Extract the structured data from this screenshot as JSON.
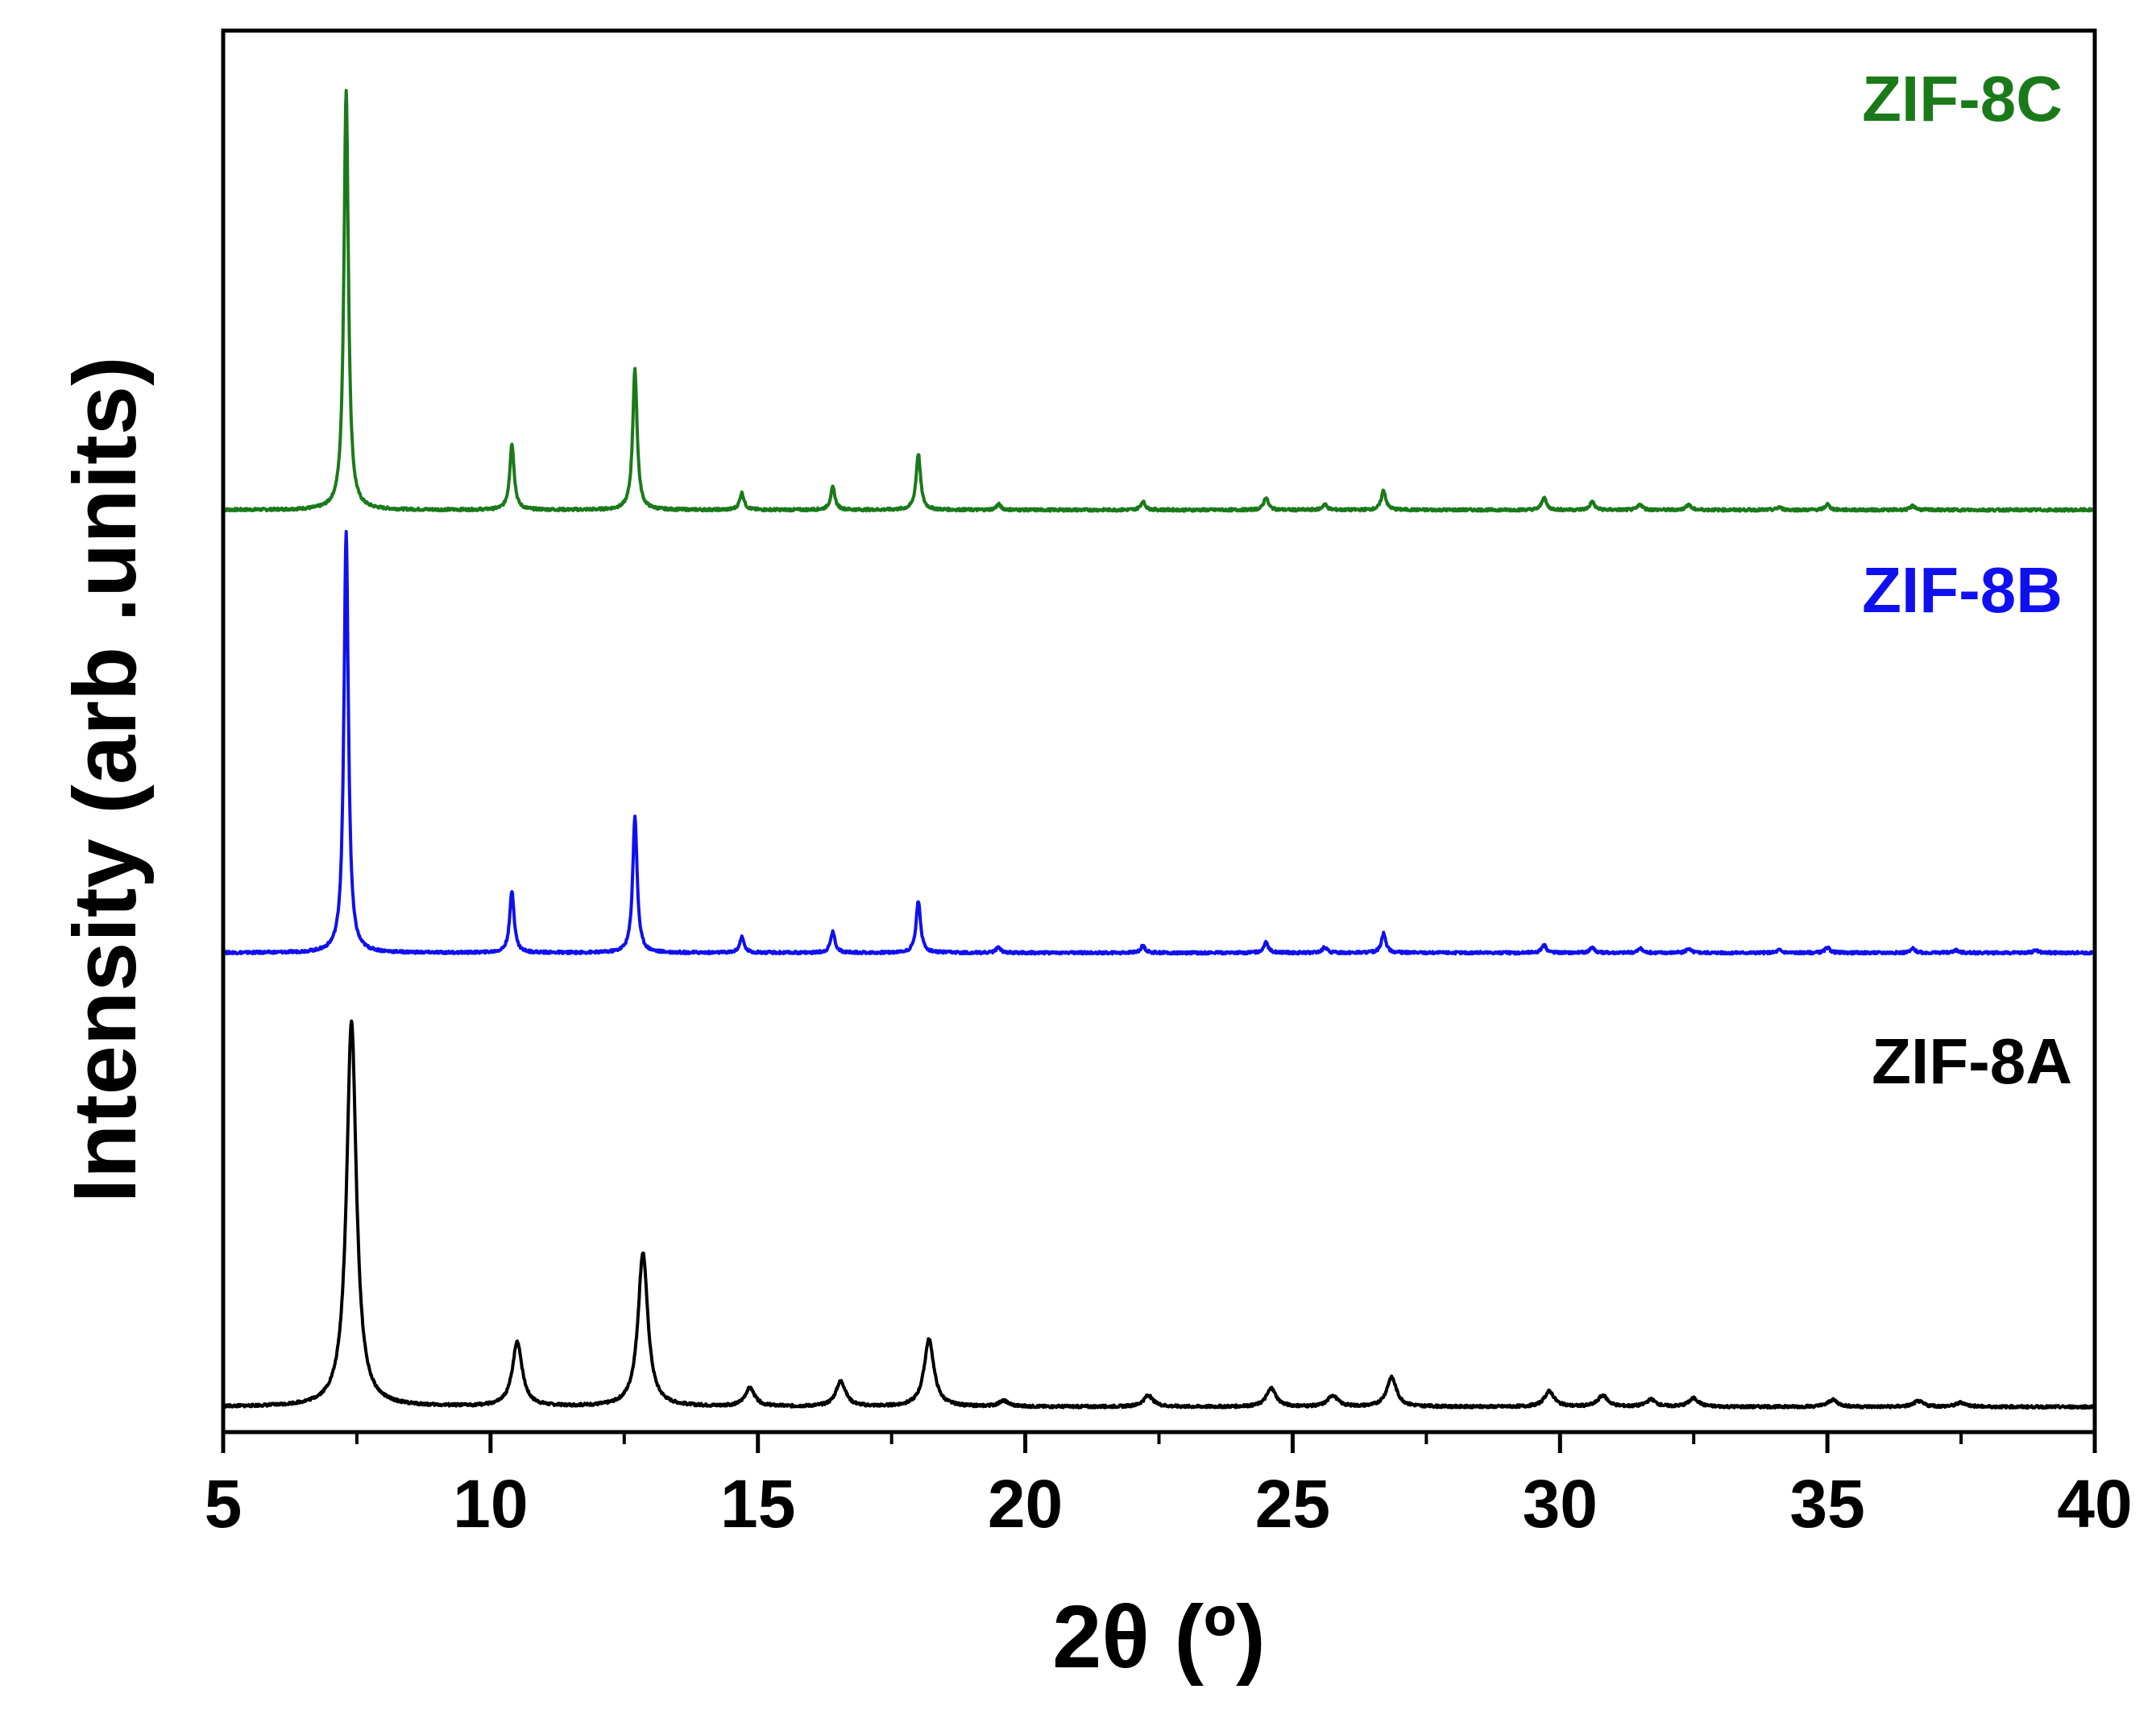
{
  "chart_data": {
    "type": "line",
    "title": "",
    "xlabel": "2θ (º)",
    "ylabel": "Intensity (arb .units)",
    "xlim": [
      5,
      40
    ],
    "ylim": [
      0,
      1
    ],
    "x_ticks": [
      5,
      10,
      15,
      20,
      25,
      30,
      35,
      40
    ],
    "x_minor_step": 2.5,
    "grid": false,
    "legend": "inline labels at top-right of each trace",
    "series": [
      {
        "name": "ZIF-8C",
        "color": "#1a7a1a",
        "baseline": 0.658,
        "peaks": [
          {
            "x": 7.3,
            "height": 0.3,
            "width": 0.1
          },
          {
            "x": 10.4,
            "height": 0.047,
            "width": 0.1
          },
          {
            "x": 12.7,
            "height": 0.1,
            "width": 0.1
          },
          {
            "x": 14.7,
            "height": 0.012,
            "width": 0.1
          },
          {
            "x": 16.4,
            "height": 0.016,
            "width": 0.1
          },
          {
            "x": 18.0,
            "height": 0.04,
            "width": 0.1
          },
          {
            "x": 19.5,
            "height": 0.004,
            "width": 0.1
          },
          {
            "x": 22.2,
            "height": 0.006,
            "width": 0.1
          },
          {
            "x": 24.5,
            "height": 0.009,
            "width": 0.1
          },
          {
            "x": 25.6,
            "height": 0.004,
            "width": 0.1
          },
          {
            "x": 26.7,
            "height": 0.014,
            "width": 0.1
          },
          {
            "x": 29.7,
            "height": 0.009,
            "width": 0.1
          },
          {
            "x": 30.6,
            "height": 0.006,
            "width": 0.1
          },
          {
            "x": 31.5,
            "height": 0.004,
            "width": 0.1
          },
          {
            "x": 32.4,
            "height": 0.004,
            "width": 0.1
          },
          {
            "x": 34.1,
            "height": 0.002,
            "width": 0.1
          },
          {
            "x": 35.0,
            "height": 0.004,
            "width": 0.1
          },
          {
            "x": 36.6,
            "height": 0.003,
            "width": 0.1
          }
        ]
      },
      {
        "name": "ZIF-8B",
        "color": "#1010ee",
        "baseline": 0.342,
        "peaks": [
          {
            "x": 7.3,
            "height": 0.3,
            "width": 0.1
          },
          {
            "x": 10.4,
            "height": 0.044,
            "width": 0.1
          },
          {
            "x": 12.7,
            "height": 0.097,
            "width": 0.1
          },
          {
            "x": 14.7,
            "height": 0.011,
            "width": 0.1
          },
          {
            "x": 16.4,
            "height": 0.015,
            "width": 0.1
          },
          {
            "x": 18.0,
            "height": 0.037,
            "width": 0.1
          },
          {
            "x": 19.5,
            "height": 0.004,
            "width": 0.1
          },
          {
            "x": 22.2,
            "height": 0.005,
            "width": 0.1
          },
          {
            "x": 24.5,
            "height": 0.008,
            "width": 0.1
          },
          {
            "x": 25.6,
            "height": 0.004,
            "width": 0.1
          },
          {
            "x": 26.7,
            "height": 0.014,
            "width": 0.1
          },
          {
            "x": 29.7,
            "height": 0.006,
            "width": 0.1
          },
          {
            "x": 30.6,
            "height": 0.004,
            "width": 0.1
          },
          {
            "x": 31.5,
            "height": 0.003,
            "width": 0.1
          },
          {
            "x": 32.4,
            "height": 0.003,
            "width": 0.1
          },
          {
            "x": 34.1,
            "height": 0.002,
            "width": 0.1
          },
          {
            "x": 35.0,
            "height": 0.004,
            "width": 0.1
          },
          {
            "x": 36.6,
            "height": 0.003,
            "width": 0.1
          },
          {
            "x": 37.4,
            "height": 0.002,
            "width": 0.1
          },
          {
            "x": 38.9,
            "height": 0.002,
            "width": 0.1
          }
        ]
      },
      {
        "name": "ZIF-8A",
        "color": "#000000",
        "baseline": 0.018,
        "peaks": [
          {
            "x": 7.4,
            "height": 0.275,
            "width": 0.22
          },
          {
            "x": 10.5,
            "height": 0.046,
            "width": 0.22
          },
          {
            "x": 12.85,
            "height": 0.11,
            "width": 0.22
          },
          {
            "x": 14.85,
            "height": 0.013,
            "width": 0.22
          },
          {
            "x": 16.55,
            "height": 0.018,
            "width": 0.22
          },
          {
            "x": 18.2,
            "height": 0.048,
            "width": 0.22
          },
          {
            "x": 19.6,
            "height": 0.004,
            "width": 0.22
          },
          {
            "x": 22.3,
            "height": 0.008,
            "width": 0.22
          },
          {
            "x": 24.6,
            "height": 0.013,
            "width": 0.22
          },
          {
            "x": 25.75,
            "height": 0.008,
            "width": 0.22
          },
          {
            "x": 26.85,
            "height": 0.021,
            "width": 0.22
          },
          {
            "x": 29.8,
            "height": 0.011,
            "width": 0.22
          },
          {
            "x": 30.8,
            "height": 0.008,
            "width": 0.22
          },
          {
            "x": 31.7,
            "height": 0.005,
            "width": 0.22
          },
          {
            "x": 32.5,
            "height": 0.006,
            "width": 0.22
          },
          {
            "x": 35.1,
            "height": 0.005,
            "width": 0.22
          },
          {
            "x": 36.7,
            "height": 0.004,
            "width": 0.22
          },
          {
            "x": 37.5,
            "height": 0.003,
            "width": 0.22
          }
        ]
      }
    ]
  }
}
